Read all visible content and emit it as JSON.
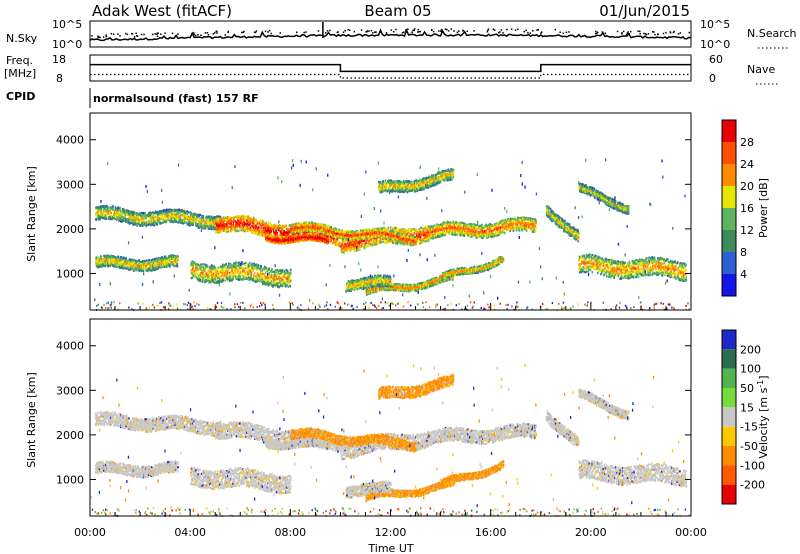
{
  "header": {
    "radar": "Adak West (fitACF)",
    "beam": "Beam 05",
    "date": "01/Jun/2015"
  },
  "colors": {
    "frame": "#000000",
    "power_scale": [
      "#1414e6",
      "#2d5fd2",
      "#3c8c5a",
      "#5fb45f",
      "#e6e600",
      "#ff8c00",
      "#ff5000",
      "#e60000"
    ],
    "velocity_scale": [
      "#1e28c8",
      "#2d6e50",
      "#50b450",
      "#78dc3c",
      "#c8c8c8",
      "#ffc800",
      "#ff8c00",
      "#ff5a00",
      "#e60000"
    ]
  },
  "chart_data": [
    {
      "type": "line",
      "panel": "noise",
      "ylabel_left": "N.Sky",
      "ylabel_right": "N.Search",
      "y_ticks_left": [
        "10^5",
        "10^0"
      ],
      "y_ticks_right": [
        "10^5",
        "10^0"
      ],
      "yscale": "log",
      "xlim": [
        "00:00",
        "24:00"
      ]
    },
    {
      "type": "line",
      "panel": "frequency",
      "ylabel_left": [
        "Freq.",
        "[MHz]"
      ],
      "ylabel_right": "Nave",
      "y_ticks_left": [
        "18",
        "8"
      ],
      "y_ticks_right": [
        "60",
        "0"
      ],
      "ylim_left": [
        8,
        18
      ],
      "ylim_right": [
        0,
        60
      ],
      "series": [
        {
          "name": "Freq.",
          "x": [
            0,
            10.0,
            10.0,
            18.0,
            18.0,
            24
          ],
          "y": [
            14.3,
            14.3,
            11.7,
            11.7,
            14.3,
            14.3
          ]
        },
        {
          "name": "Nave",
          "x": [
            0,
            10.0,
            10.0,
            18.0,
            18.0,
            24
          ],
          "y": [
            8,
            8,
            0,
            0,
            8,
            8
          ]
        }
      ]
    },
    {
      "type": "table",
      "panel": "cpid",
      "label": "CPID",
      "value": "normalsound (fast) 157 RF"
    },
    {
      "type": "heatmap",
      "panel": "power",
      "ylabel": "Slant Range [km]",
      "y_ticks": [
        1000,
        2000,
        3000,
        4000
      ],
      "ylim": [
        180,
        4600
      ],
      "xlim": [
        0,
        24
      ],
      "colorbar_label": "Power [dB]",
      "colorbar_ticks": [
        4,
        8,
        12,
        16,
        20,
        24,
        28
      ],
      "colorbar_range": [
        0,
        32
      ]
    },
    {
      "type": "heatmap",
      "panel": "velocity",
      "ylabel": "Slant Range [km]",
      "y_ticks": [
        1000,
        2000,
        3000,
        4000
      ],
      "ylim": [
        180,
        4600
      ],
      "xlim": [
        0,
        24
      ],
      "x_ticks": [
        "00:00",
        "04:00",
        "08:00",
        "12:00",
        "16:00",
        "20:00",
        "00:00"
      ],
      "xlabel": "Time UT",
      "colorbar_label": "Velocity [m s^-1]",
      "colorbar_ticks": [
        200,
        100,
        50,
        15,
        -15,
        -50,
        -100,
        -200
      ]
    }
  ]
}
